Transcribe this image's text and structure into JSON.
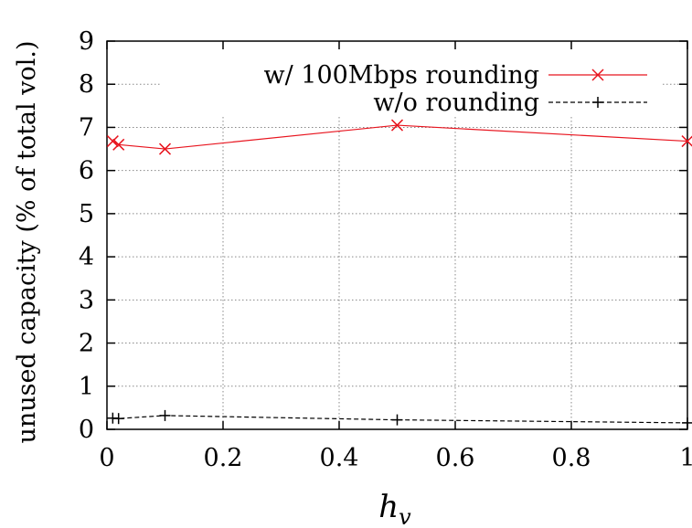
{
  "chart_data": {
    "type": "line",
    "xlabel_main": "h",
    "xlabel_sub": "v",
    "ylabel": "unused capacity (% of total vol.)",
    "xlim": [
      0,
      1
    ],
    "ylim": [
      0,
      9
    ],
    "xticks": [
      0,
      0.2,
      0.4,
      0.6,
      0.8,
      1
    ],
    "xtick_labels": [
      "0",
      "0.2",
      "0.4",
      "0.6",
      "0.8",
      "1"
    ],
    "yticks": [
      0,
      1,
      2,
      3,
      4,
      5,
      6,
      7,
      8,
      9
    ],
    "ytick_labels": [
      "0",
      "1",
      "2",
      "3",
      "4",
      "5",
      "6",
      "7",
      "8",
      "9"
    ],
    "grid": true,
    "legend_position": "top-right",
    "series": [
      {
        "name": "w/ 100Mbps rounding",
        "color": "#e8141e",
        "marker": "x",
        "dash": "solid",
        "x": [
          0.01,
          0.02,
          0.1,
          0.5,
          1.0
        ],
        "y": [
          6.68,
          6.6,
          6.5,
          7.05,
          6.68
        ]
      },
      {
        "name": "w/o rounding",
        "color": "#000000",
        "marker": "+",
        "dash": "dashed",
        "x": [
          0.01,
          0.02,
          0.1,
          0.5,
          1.0
        ],
        "y": [
          0.26,
          0.25,
          0.32,
          0.22,
          0.15
        ]
      }
    ]
  }
}
